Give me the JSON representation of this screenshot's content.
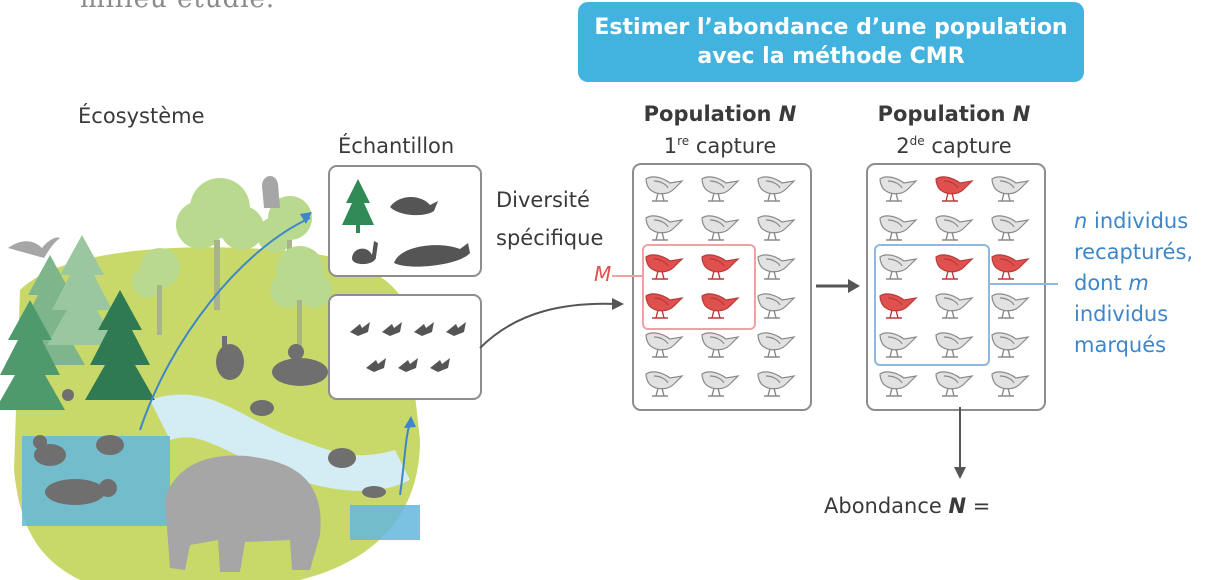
{
  "header": {
    "cut_text": "milieu étudié.",
    "title_line1": "Estimer l’abondance d’une population",
    "title_line2": "avec la méthode CMR"
  },
  "labels": {
    "ecosysteme": "Écosystème",
    "echantillon": "Échantillon",
    "diversite_line1": "Diversité",
    "diversite_line2": "spécifique",
    "m_marker": "M"
  },
  "population1": {
    "title_word": "Population",
    "title_var": "N",
    "capture_num": "1",
    "capture_sup": "re",
    "capture_word": "capture"
  },
  "population2": {
    "title_word": "Population",
    "title_var": "N",
    "capture_num": "2",
    "capture_sup": "de",
    "capture_word": "capture"
  },
  "annotation": {
    "line1_var": "n",
    "line1_text": "individus",
    "line2": "recapturés,",
    "line3_text": "dont",
    "line3_var": "m",
    "line4": "individus",
    "line5": "marqués"
  },
  "result": {
    "text": "Abondance",
    "var": "N",
    "equals": "="
  },
  "colors": {
    "title_bg": "#42b2de",
    "marked": "#e0504f",
    "recapture": "#3f86c8",
    "ground": "#c8d96a",
    "river": "#d4ecf4"
  },
  "grids": {
    "population1_marked": [
      [
        0,
        0,
        0
      ],
      [
        0,
        0,
        0
      ],
      [
        1,
        1,
        0
      ],
      [
        1,
        1,
        0
      ],
      [
        0,
        0,
        0
      ],
      [
        0,
        0,
        0
      ]
    ],
    "population2_marked": [
      [
        0,
        1,
        0
      ],
      [
        0,
        0,
        0
      ],
      [
        0,
        1,
        1
      ],
      [
        1,
        0,
        0
      ],
      [
        0,
        0,
        0
      ],
      [
        0,
        0,
        0
      ]
    ]
  }
}
